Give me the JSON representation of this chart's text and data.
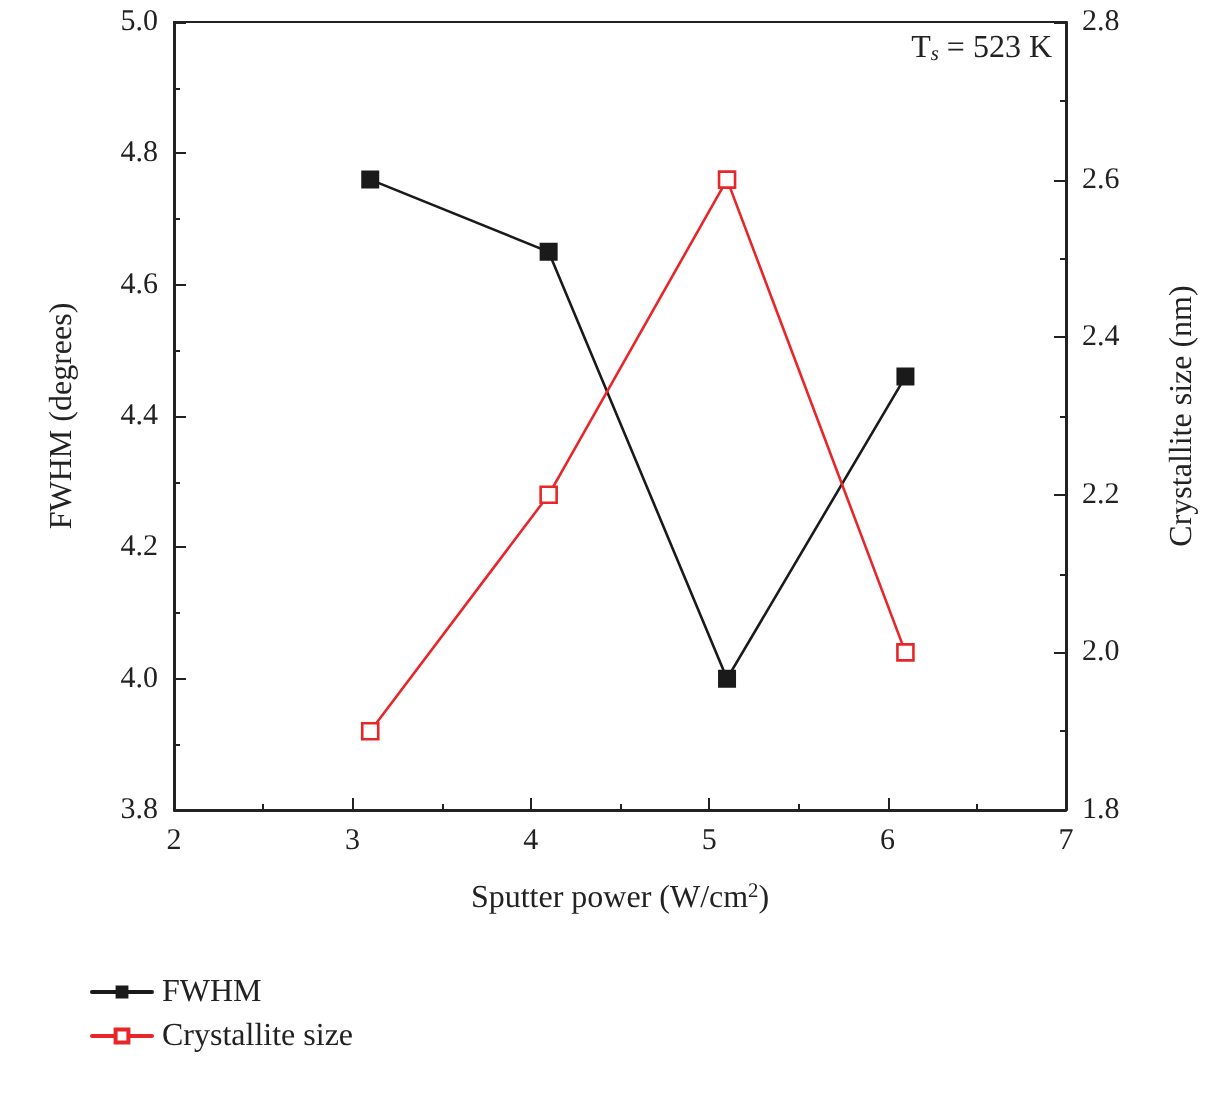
{
  "chart_data": {
    "type": "line",
    "x": [
      3.1,
      4.1,
      5.1,
      6.1
    ],
    "series": [
      {
        "name": "FWHM",
        "color": "#1a1a1a",
        "values": [
          4.76,
          4.65,
          4.0,
          4.46
        ]
      },
      {
        "name": "Crystallite size",
        "color": "#e8262a",
        "axis": "y2",
        "values": [
          1.9,
          2.2,
          2.6,
          2.0
        ]
      }
    ],
    "xlabel": "Sputter power (W/cm$^{2}$)",
    "ylabel": "FWHM (degrees)",
    "y2label": "Crystallite size (nm)",
    "xlim": [
      2,
      7
    ],
    "xticks": [
      2,
      3,
      4,
      5,
      6,
      7
    ],
    "ylim": [
      3.8,
      5.0
    ],
    "yticks": [
      3.8,
      {
        "value": 4,
        "label": "4.0"
      },
      4.2,
      4.4,
      4.6,
      4.8,
      {
        "value": 5,
        "label": "5.0"
      }
    ],
    "y2lim": [
      1.8,
      2.8
    ],
    "y2ticks": [
      1.8,
      {
        "value": 2,
        "label": "2.0"
      },
      2.2,
      2.4,
      2.6,
      2.8
    ],
    "annotations": [
      "T$_{s}$ = 523 K"
    ],
    "marker": "square",
    "line_style": "solid",
    "grid": false,
    "legend": "bottom left"
  }
}
